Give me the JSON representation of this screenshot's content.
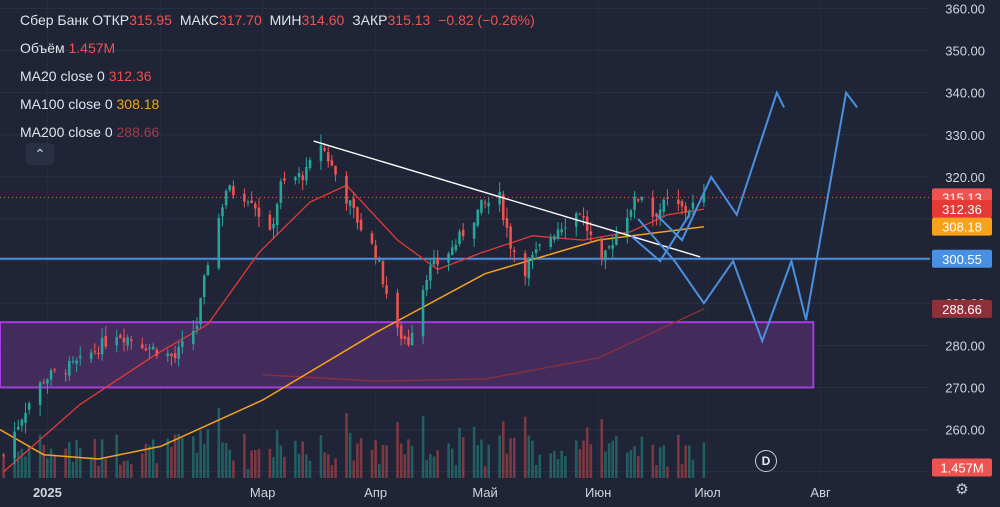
{
  "legend": {
    "symbol": "Сбер Банк",
    "open_label": "ОТКР",
    "open": "315.95",
    "high_label": "МАКС",
    "high": "317.70",
    "low_label": "МИН",
    "low": "314.60",
    "close_label": "ЗАКР",
    "close": "315.13",
    "change": "−0.82 (−0.26%)",
    "volume_label": "Объём",
    "volume": "1.457M",
    "ma20_label": "MA20 close 0",
    "ma20": "312.36",
    "ma100_label": "MA100 close 0",
    "ma100": "308.18",
    "ma200_label": "MA200 close 0",
    "ma200": "288.66"
  },
  "colors": {
    "background": "#1f2537",
    "up": "#26a69a",
    "down": "#ef5350",
    "ma20": "#e53935",
    "ma100": "#f7a21b",
    "ma200": "#8e2f3a",
    "level": "#4a90e2",
    "zone_fill": "#4a2e63",
    "zone_border": "#a63ce0",
    "trendline": "#ffffff"
  },
  "collapse_icon": "chevron-up-icon",
  "dividends_badge": "D",
  "settings_icon": "gear-icon",
  "chart_data": {
    "type": "candlestick",
    "title": "Сбер Банк",
    "y_axis": {
      "ticks": [
        360,
        350,
        340,
        330,
        320,
        310,
        300,
        290,
        280,
        270,
        260,
        250
      ],
      "ylim": [
        248.5,
        362
      ]
    },
    "x_axis": {
      "ticks": [
        "2025",
        "Мар",
        "Апр",
        "Май",
        "Июн",
        "Июл",
        "Авг"
      ],
      "xlim": [
        "2024-12-19",
        "2025-08-31"
      ]
    },
    "price_badges": [
      {
        "value": "315.13",
        "color": "#ef5350"
      },
      {
        "value": "312.36",
        "color": "#e53935"
      },
      {
        "value": "308.18",
        "color": "#f7a21b"
      },
      {
        "value": "300.55",
        "color": "#4a90e2"
      },
      {
        "value": "288.66",
        "color": "#8e2f3a"
      },
      {
        "value": "1.457M",
        "color": "#ef5350",
        "y": 251
      }
    ],
    "current_price": 315.13,
    "horizontal_level": 300.55,
    "support_zone": {
      "from": "2024-12-19",
      "to": "2025-07-30",
      "low": 270,
      "high": 285.5
    },
    "trendline": {
      "from": [
        "2025-03-15",
        328.5
      ],
      "to": [
        "2025-06-29",
        301
      ]
    },
    "ohlc_anchors": [
      {
        "date": "2024-12-20",
        "close": 254
      },
      {
        "date": "2024-12-26",
        "close": 265
      },
      {
        "date": "2024-12-31",
        "close": 272
      },
      {
        "date": "2025-01-10",
        "close": 276
      },
      {
        "date": "2025-01-20",
        "close": 283
      },
      {
        "date": "2025-01-28",
        "close": 280
      },
      {
        "date": "2025-02-05",
        "close": 277
      },
      {
        "date": "2025-02-11",
        "close": 285
      },
      {
        "date": "2025-02-14",
        "close": 300
      },
      {
        "date": "2025-02-19",
        "close": 317
      },
      {
        "date": "2025-02-26",
        "close": 315
      },
      {
        "date": "2025-03-03",
        "close": 306
      },
      {
        "date": "2025-03-06",
        "close": 318
      },
      {
        "date": "2025-03-13",
        "close": 321
      },
      {
        "date": "2025-03-17",
        "close": 328
      },
      {
        "date": "2025-03-24",
        "close": 315
      },
      {
        "date": "2025-03-28",
        "close": 308
      },
      {
        "date": "2025-04-01",
        "close": 302
      },
      {
        "date": "2025-04-07",
        "close": 283
      },
      {
        "date": "2025-04-10",
        "close": 281
      },
      {
        "date": "2025-04-15",
        "close": 297
      },
      {
        "date": "2025-04-22",
        "close": 303
      },
      {
        "date": "2025-04-30",
        "close": 313
      },
      {
        "date": "2025-05-05",
        "close": 315
      },
      {
        "date": "2025-05-08",
        "close": 304
      },
      {
        "date": "2025-05-12",
        "close": 298
      },
      {
        "date": "2025-05-16",
        "close": 303
      },
      {
        "date": "2025-05-21",
        "close": 308
      },
      {
        "date": "2025-05-27",
        "close": 312
      },
      {
        "date": "2025-06-02",
        "close": 299
      },
      {
        "date": "2025-06-05",
        "close": 305
      },
      {
        "date": "2025-06-10",
        "close": 313
      },
      {
        "date": "2025-06-13",
        "close": 316
      },
      {
        "date": "2025-06-16",
        "close": 311
      },
      {
        "date": "2025-06-20",
        "close": 314
      },
      {
        "date": "2025-06-25",
        "close": 312
      },
      {
        "date": "2025-06-30",
        "close": 315.13
      }
    ],
    "ma20": [
      [
        "2024-12-20",
        250
      ],
      [
        "2025-01-10",
        266
      ],
      [
        "2025-01-31",
        278
      ],
      [
        "2025-02-14",
        285
      ],
      [
        "2025-02-28",
        302
      ],
      [
        "2025-03-14",
        314
      ],
      [
        "2025-03-24",
        318
      ],
      [
        "2025-04-07",
        305
      ],
      [
        "2025-04-18",
        298
      ],
      [
        "2025-04-30",
        302
      ],
      [
        "2025-05-14",
        306
      ],
      [
        "2025-05-28",
        305
      ],
      [
        "2025-06-10",
        307
      ],
      [
        "2025-06-20",
        311
      ],
      [
        "2025-06-30",
        312.36
      ]
    ],
    "ma100": [
      [
        "2024-12-19",
        260
      ],
      [
        "2024-12-31",
        254
      ],
      [
        "2025-01-15",
        253
      ],
      [
        "2025-02-01",
        256
      ],
      [
        "2025-03-01",
        267
      ],
      [
        "2025-04-01",
        283
      ],
      [
        "2025-05-01",
        297
      ],
      [
        "2025-06-01",
        305
      ],
      [
        "2025-06-30",
        308.18
      ]
    ],
    "ma200": [
      [
        "2025-03-01",
        273
      ],
      [
        "2025-04-01",
        271.5
      ],
      [
        "2025-05-01",
        272
      ],
      [
        "2025-06-01",
        277
      ],
      [
        "2025-06-30",
        288.66
      ]
    ],
    "projection_1": [
      [
        "2025-06-17",
        311
      ],
      [
        "2025-06-24",
        305
      ],
      [
        "2025-07-02",
        320
      ],
      [
        "2025-07-09",
        311
      ],
      [
        "2025-07-20",
        340
      ],
      [
        "2025-07-22",
        336.5
      ]
    ],
    "projection_2": [
      [
        "2025-06-12",
        310
      ],
      [
        "2025-06-22",
        300
      ],
      [
        "2025-06-30",
        290
      ],
      [
        "2025-07-08",
        300
      ],
      [
        "2025-07-16",
        281
      ],
      [
        "2025-07-24",
        300
      ],
      [
        "2025-07-28",
        286
      ],
      [
        "2025-08-08",
        340
      ],
      [
        "2025-08-11",
        336.5
      ]
    ],
    "projection_3": [
      [
        "2025-06-10",
        306
      ],
      [
        "2025-06-18",
        300
      ],
      [
        "2025-06-26",
        311
      ]
    ]
  }
}
